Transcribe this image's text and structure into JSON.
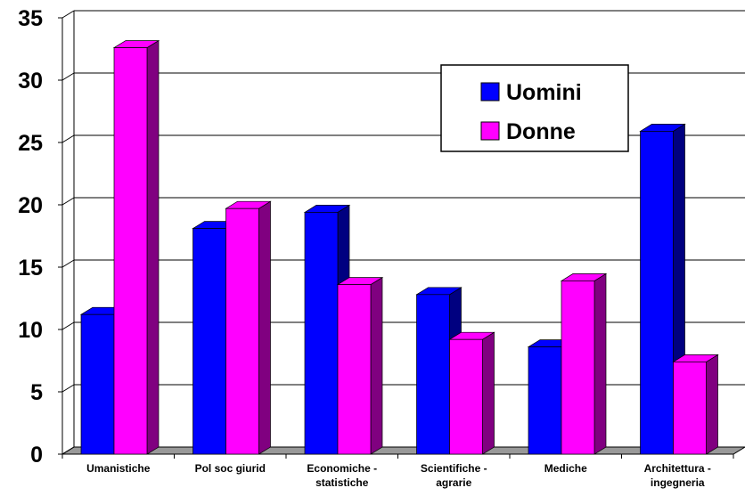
{
  "chart_data": {
    "type": "bar3d",
    "categories": [
      "Umanistiche",
      "Pol soc giurid",
      "Economiche -\nstatistiche",
      "Scientifiche -\nagrarie",
      "Mediche",
      "Architettura -\ningegneria"
    ],
    "series": [
      {
        "name": "Uomini",
        "color": "#0000ff",
        "side": "#000080",
        "values": [
          11.2,
          18.1,
          19.4,
          12.8,
          8.6,
          25.9
        ]
      },
      {
        "name": "Donne",
        "color": "#ff00ff",
        "side": "#800080",
        "values": [
          32.6,
          19.7,
          13.6,
          9.2,
          13.9,
          7.4
        ]
      }
    ],
    "ylim": [
      0,
      35
    ],
    "yticks": [
      0,
      5,
      10,
      15,
      20,
      25,
      30,
      35
    ],
    "grid": true
  }
}
